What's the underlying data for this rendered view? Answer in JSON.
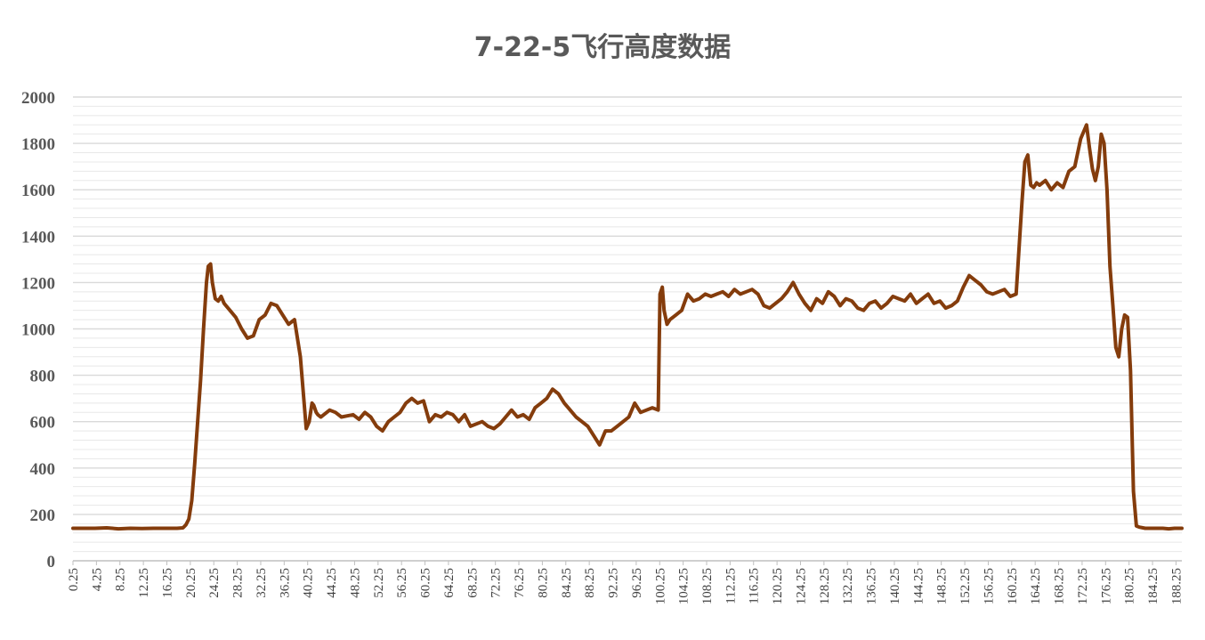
{
  "chart_data": {
    "type": "line",
    "title": "7-22-5飞行高度数据",
    "xlabel": "",
    "ylabel": "",
    "ylim": [
      0,
      2000
    ],
    "yticks": [
      0,
      200,
      400,
      600,
      800,
      1000,
      1200,
      1400,
      1600,
      1800,
      2000
    ],
    "xlim": [
      0.25,
      189.25
    ],
    "xticks": [
      "0.25",
      "4.25",
      "8.25",
      "12.25",
      "16.25",
      "20.25",
      "24.25",
      "28.25",
      "32.25",
      "36.25",
      "40.25",
      "44.25",
      "48.25",
      "52.25",
      "56.25",
      "60.25",
      "64.25",
      "68.25",
      "72.25",
      "76.25",
      "80.25",
      "84.25",
      "88.25",
      "92.25",
      "96.25",
      "100.25",
      "104.25",
      "108.25",
      "112.25",
      "116.25",
      "120.25",
      "124.25",
      "128.25",
      "132.25",
      "136.25",
      "140.25",
      "144.25",
      "148.25",
      "152.25",
      "156.25",
      "160.25",
      "164.25",
      "168.25",
      "172.25",
      "176.25",
      "180.25",
      "184.25",
      "188.25"
    ],
    "grid": true,
    "colors": {
      "line": "#843C0C",
      "major_grid": "#d9d9d9",
      "minor_grid": "#e8e8e8"
    },
    "series": [
      {
        "name": "",
        "x": [
          0.25,
          2,
          4,
          6,
          8,
          10,
          12,
          14,
          16,
          18,
          19,
          19.5,
          20,
          20.5,
          21,
          21.5,
          22,
          22.5,
          23,
          23.3,
          23.7,
          24,
          24.5,
          25,
          25.5,
          26,
          27,
          28,
          29,
          30,
          31,
          32,
          33,
          34,
          35,
          36,
          37,
          38,
          39,
          40,
          40.5,
          41,
          41.3,
          41.7,
          42,
          42.5,
          43,
          44,
          45,
          46,
          47,
          48,
          49,
          50,
          51,
          52,
          53,
          54,
          55,
          56,
          57,
          58,
          59,
          60,
          61,
          62,
          63,
          64,
          65,
          66,
          67,
          68,
          69,
          70,
          71,
          72,
          73,
          74,
          75,
          76,
          77,
          78,
          79,
          80,
          81,
          82,
          83,
          84,
          85,
          86,
          87,
          88,
          89,
          90,
          91,
          92,
          93,
          94,
          95,
          96,
          97,
          98,
          99,
          100,
          100.3,
          100.7,
          101,
          101.5,
          102,
          103,
          104,
          105,
          106,
          107,
          108,
          109,
          110,
          111,
          112,
          113,
          114,
          115,
          116,
          117,
          118,
          119,
          120,
          121,
          122,
          123,
          124,
          125,
          126,
          127,
          128,
          129,
          130,
          131,
          132,
          133,
          134,
          135,
          136,
          137,
          138,
          139,
          140,
          141,
          142,
          143,
          144,
          145,
          146,
          147,
          148,
          149,
          150,
          151,
          152,
          153,
          154,
          155,
          156,
          157,
          158,
          159,
          160,
          161,
          162,
          162.5,
          163,
          163.5,
          164,
          164.5,
          165,
          166,
          167,
          168,
          169,
          170,
          171,
          172,
          173,
          173.5,
          174,
          174.5,
          175,
          175.5,
          176,
          176.5,
          177,
          177.5,
          178,
          178.5,
          179,
          179.5,
          180,
          180.5,
          181,
          181.5,
          182,
          183,
          184,
          185,
          186,
          187,
          188,
          189.25
        ],
        "values": [
          140,
          140,
          140,
          142,
          138,
          140,
          139,
          140,
          140,
          140,
          142,
          155,
          180,
          260,
          420,
          600,
          780,
          1000,
          1200,
          1270,
          1280,
          1200,
          1130,
          1120,
          1140,
          1110,
          1080,
          1050,
          1000,
          960,
          970,
          1040,
          1060,
          1110,
          1100,
          1060,
          1020,
          1040,
          880,
          570,
          600,
          680,
          670,
          640,
          630,
          620,
          630,
          650,
          640,
          620,
          625,
          630,
          610,
          640,
          620,
          580,
          560,
          600,
          620,
          640,
          680,
          700,
          680,
          690,
          600,
          630,
          620,
          640,
          630,
          600,
          630,
          580,
          590,
          600,
          580,
          570,
          590,
          620,
          650,
          620,
          630,
          610,
          660,
          680,
          700,
          740,
          720,
          680,
          650,
          620,
          600,
          580,
          540,
          500,
          560,
          560,
          580,
          600,
          620,
          680,
          640,
          650,
          660,
          650,
          1150,
          1180,
          1080,
          1020,
          1040,
          1060,
          1080,
          1150,
          1120,
          1130,
          1150,
          1140,
          1150,
          1160,
          1140,
          1170,
          1150,
          1160,
          1170,
          1150,
          1100,
          1090,
          1110,
          1130,
          1160,
          1200,
          1150,
          1110,
          1080,
          1130,
          1110,
          1160,
          1140,
          1100,
          1130,
          1120,
          1090,
          1080,
          1110,
          1120,
          1090,
          1110,
          1140,
          1130,
          1120,
          1150,
          1110,
          1130,
          1150,
          1110,
          1120,
          1090,
          1100,
          1120,
          1180,
          1230,
          1210,
          1190,
          1160,
          1150,
          1160,
          1170,
          1140,
          1150,
          1550,
          1720,
          1750,
          1620,
          1610,
          1630,
          1620,
          1640,
          1600,
          1630,
          1610,
          1680,
          1700,
          1820,
          1880,
          1780,
          1690,
          1640,
          1700,
          1840,
          1800,
          1600,
          1270,
          1100,
          920,
          880,
          1000,
          1060,
          1050,
          820,
          300,
          150,
          145,
          140,
          140,
          140,
          140,
          138,
          140,
          140
        ]
      }
    ]
  }
}
